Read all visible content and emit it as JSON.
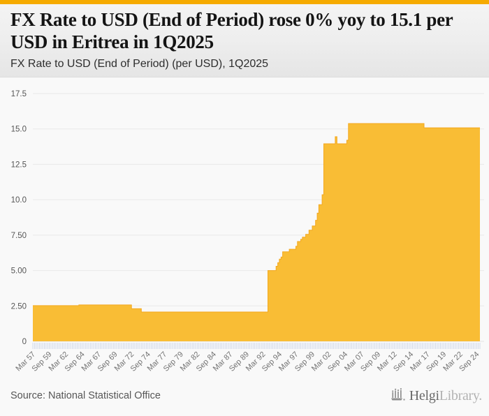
{
  "header": {
    "title": "FX Rate to USD (End of Period) rose 0% yoy to 15.1 per USD in Eritrea in 1Q2025",
    "subtitle": "FX Rate to USD (End of Period) (per USD), 1Q2025",
    "accent_color": "#F6AB00"
  },
  "chart_data": {
    "type": "area",
    "title": "FX Rate to USD (End of Period) (per USD), 1Q2025",
    "country": "Eritrea",
    "unit": "per USD",
    "frequency": "quarterly",
    "x_range": [
      "Mar 1957",
      "Mar 2025"
    ],
    "ylim": [
      0,
      17.5
    ],
    "grid": true,
    "legend": "none",
    "y_tick_labels": [
      "17.5",
      "15.0",
      "12.5",
      "10.0",
      "7.50",
      "5.00",
      "2.50",
      "0"
    ],
    "y_tick_values": [
      17.5,
      15,
      12.5,
      10,
      7.5,
      5,
      2.5,
      0
    ],
    "x_tick_labels": [
      "Mar 57",
      "Sep 59",
      "Mar 62",
      "Sep 64",
      "Mar 67",
      "Sep 69",
      "Mar 72",
      "Sep 74",
      "Mar 77",
      "Sep 79",
      "Mar 82",
      "Sep 84",
      "Mar 87",
      "Sep 89",
      "Mar 92",
      "Sep 94",
      "Mar 97",
      "Sep 99",
      "Mar 02",
      "Sep 04",
      "Mar 07",
      "Sep 09",
      "Mar 12",
      "Sep 14",
      "Mar 17",
      "Sep 19",
      "Mar 22",
      "Sep 24"
    ],
    "x_tick_step_quarters": 10,
    "area_color": "#F9BD35",
    "edge_color": "#F3A81E",
    "gridline_color": "#E9E9E9",
    "tick_strip_color": "#CCD5E7",
    "segments": [
      {
        "from": "1957Q1",
        "to": "1963Q4",
        "value": 2.52
      },
      {
        "from": "1964Q1",
        "to": "1971Q4",
        "value": 2.57
      },
      {
        "from": "1972Q1",
        "to": "1973Q2",
        "value": 2.3
      },
      {
        "from": "1973Q3",
        "to": "1992Q3",
        "value": 2.07
      },
      {
        "from": "1992Q4",
        "to": "1993Q4",
        "value": 5.0
      },
      {
        "from": "1994Q1",
        "to": "1994Q1",
        "value": 5.3
      },
      {
        "from": "1994Q2",
        "to": "1994Q2",
        "value": 5.55
      },
      {
        "from": "1994Q3",
        "to": "1994Q3",
        "value": 5.8
      },
      {
        "from": "1994Q4",
        "to": "1994Q4",
        "value": 5.95
      },
      {
        "from": "1995Q1",
        "to": "1995Q4",
        "value": 6.32
      },
      {
        "from": "1996Q1",
        "to": "1996Q4",
        "value": 6.5
      },
      {
        "from": "1997Q1",
        "to": "1997Q1",
        "value": 6.71
      },
      {
        "from": "1997Q2",
        "to": "1997Q3",
        "value": 7.05
      },
      {
        "from": "1997Q4",
        "to": "1997Q4",
        "value": 7.2
      },
      {
        "from": "1998Q1",
        "to": "1998Q2",
        "value": 7.36
      },
      {
        "from": "1998Q3",
        "to": "1998Q4",
        "value": 7.55
      },
      {
        "from": "1999Q1",
        "to": "1999Q2",
        "value": 7.85
      },
      {
        "from": "1999Q3",
        "to": "1999Q4",
        "value": 8.15
      },
      {
        "from": "2000Q1",
        "to": "2000Q1",
        "value": 8.55
      },
      {
        "from": "2000Q2",
        "to": "2000Q2",
        "value": 9.05
      },
      {
        "from": "2000Q3",
        "to": "2000Q4",
        "value": 9.65
      },
      {
        "from": "2001Q1",
        "to": "2001Q1",
        "value": 10.35
      },
      {
        "from": "2001Q2",
        "to": "2002Q4",
        "value": 13.95
      },
      {
        "from": "2003Q1",
        "to": "2003Q1",
        "value": 14.45
      },
      {
        "from": "2003Q2",
        "to": "2004Q3",
        "value": 13.95
      },
      {
        "from": "2004Q4",
        "to": "2004Q4",
        "value": 14.2
      },
      {
        "from": "2005Q1",
        "to": "2016Q2",
        "value": 15.38
      },
      {
        "from": "2016Q3",
        "to": "2025Q1",
        "value": 15.08
      }
    ],
    "latest": {
      "period": "1Q2025",
      "value": 15.1,
      "yoy_change_pct": 0
    }
  },
  "footer": {
    "source": "Source: National Statistical Office",
    "logo": {
      "name": "HelgiLibrary",
      "part1": "Helgi",
      "part2": "Library."
    }
  }
}
